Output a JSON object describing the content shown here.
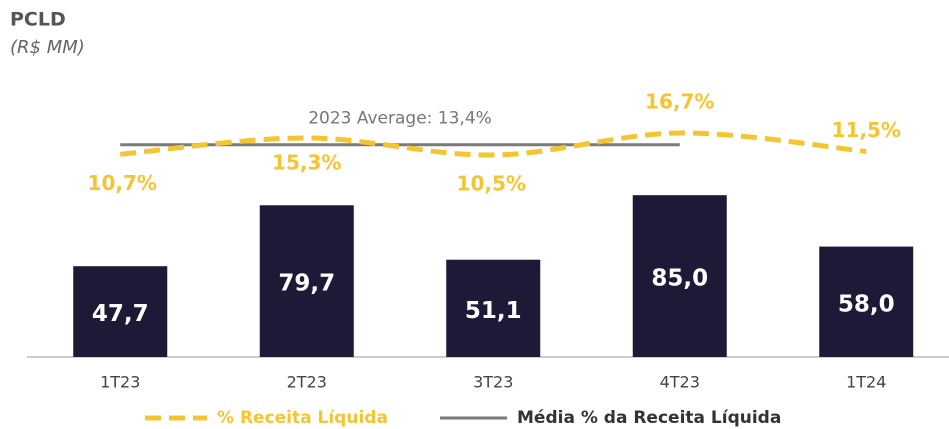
{
  "chart_data": {
    "type": "bar",
    "title": "PCLD",
    "subtitle": "(R$ MM)",
    "categories": [
      "1T23",
      "2T23",
      "3T23",
      "4T23",
      "1T24"
    ],
    "series": [
      {
        "name": "PCLD",
        "type": "bar",
        "color": "#1d1a38",
        "values": [
          47.7,
          79.7,
          51.1,
          85.0,
          58.0
        ],
        "value_labels": [
          "47,7",
          "79,7",
          "51,1",
          "85,0",
          "58,0"
        ]
      },
      {
        "name": "% Receita Líquida",
        "type": "line",
        "axis": "y2",
        "color": "#f5c531",
        "dashed": true,
        "values": [
          10.7,
          15.3,
          10.5,
          16.7,
          11.5
        ],
        "value_labels": [
          "10,7%",
          "15,3%",
          "10,5%",
          "16,7%",
          "11,5%"
        ]
      }
    ],
    "average": {
      "name": "Média % da Receita Líquida",
      "label": "2023 Average: 13,4%",
      "value": 13.4,
      "axis": "y2",
      "color": "#7a7a7a",
      "from": 0,
      "to": 3
    },
    "ylim": [
      0,
      135
    ],
    "y2lim": [
      -46.4,
      26.0
    ]
  }
}
